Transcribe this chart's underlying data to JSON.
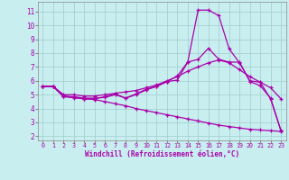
{
  "xlabel": "Windchill (Refroidissement éolien,°C)",
  "background_color": "#c8eef0",
  "grid_color": "#a0cccc",
  "line_color": "#aa00aa",
  "xlim": [
    -0.5,
    23.5
  ],
  "ylim": [
    1.7,
    11.7
  ],
  "yticks": [
    2,
    3,
    4,
    5,
    6,
    7,
    8,
    9,
    10,
    11
  ],
  "xticks": [
    0,
    1,
    2,
    3,
    4,
    5,
    6,
    7,
    8,
    9,
    10,
    11,
    12,
    13,
    14,
    15,
    16,
    17,
    18,
    19,
    20,
    21,
    22,
    23
  ],
  "line1_x": [
    0,
    1,
    2,
    3,
    4,
    5,
    6,
    7,
    8,
    9,
    10,
    11,
    12,
    13,
    14,
    15,
    16,
    17,
    18,
    19,
    20,
    21,
    22,
    23
  ],
  "line1_y": [
    5.6,
    5.6,
    4.9,
    4.85,
    4.75,
    4.75,
    4.8,
    5.0,
    4.75,
    5.0,
    5.35,
    5.6,
    5.95,
    6.35,
    7.35,
    11.1,
    11.1,
    10.7,
    8.3,
    7.3,
    6.0,
    5.9,
    4.7,
    2.4
  ],
  "line2_x": [
    0,
    1,
    2,
    3,
    4,
    5,
    6,
    7,
    8,
    9,
    10,
    11,
    12,
    13,
    14,
    15,
    16,
    17,
    18,
    19,
    20,
    21,
    22,
    23
  ],
  "line2_y": [
    5.6,
    5.6,
    4.85,
    4.78,
    4.7,
    4.7,
    4.85,
    5.05,
    4.75,
    5.05,
    5.4,
    5.6,
    5.95,
    6.05,
    7.35,
    7.55,
    8.35,
    7.55,
    7.35,
    7.35,
    5.95,
    5.65,
    4.75,
    2.4
  ],
  "line3_x": [
    0,
    1,
    2,
    3,
    4,
    5,
    6,
    7,
    8,
    9,
    10,
    11,
    12,
    13,
    14,
    15,
    16,
    17,
    18,
    19,
    20,
    21,
    22,
    23
  ],
  "line3_y": [
    5.6,
    5.6,
    5.0,
    5.0,
    4.9,
    4.9,
    5.0,
    5.1,
    5.2,
    5.3,
    5.5,
    5.7,
    6.0,
    6.3,
    6.7,
    7.0,
    7.3,
    7.5,
    7.3,
    6.8,
    6.3,
    5.9,
    5.5,
    4.7
  ],
  "line4_x": [
    0,
    1,
    2,
    3,
    4,
    5,
    6,
    7,
    8,
    9,
    10,
    11,
    12,
    13,
    14,
    15,
    16,
    17,
    18,
    19,
    20,
    21,
    22,
    23
  ],
  "line4_y": [
    5.6,
    5.6,
    4.9,
    4.8,
    4.7,
    4.65,
    4.5,
    4.35,
    4.2,
    4.0,
    3.85,
    3.7,
    3.55,
    3.4,
    3.25,
    3.1,
    2.95,
    2.8,
    2.7,
    2.6,
    2.5,
    2.45,
    2.4,
    2.35
  ]
}
